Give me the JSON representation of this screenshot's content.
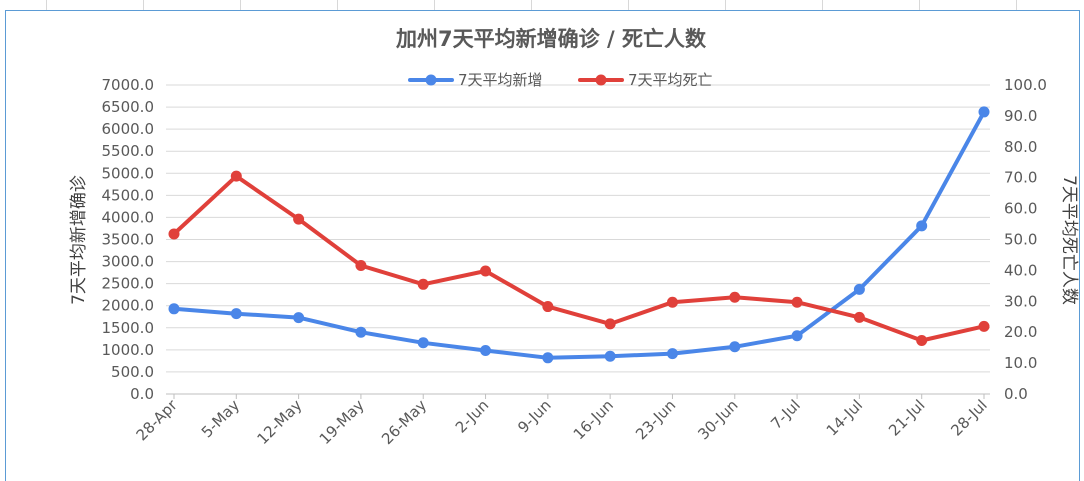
{
  "chart_data": {
    "type": "line",
    "title": "加州7天平均新增确诊 / 死亡人数",
    "categories": [
      "28-Apr",
      "5-May",
      "12-May",
      "19-May",
      "26-May",
      "2-Jun",
      "9-Jun",
      "16-Jun",
      "23-Jun",
      "30-Jun",
      "7-Jul",
      "14-Jul",
      "21-Jul",
      "28-Jul"
    ],
    "series": [
      {
        "name": "7天平均新增",
        "axis": "left",
        "color": "#4a86e8",
        "values": [
          1930,
          1820,
          1730,
          1400,
          1160,
          985,
          820,
          855,
          915,
          1070,
          1320,
          2370,
          3810,
          6390
        ]
      },
      {
        "name": "7天平均死亡",
        "axis": "right",
        "color": "#e0403a",
        "values": [
          51.8,
          70.5,
          56.6,
          41.6,
          35.5,
          39.8,
          28.3,
          22.7,
          29.7,
          31.3,
          29.7,
          24.8,
          17.3,
          21.9
        ]
      }
    ],
    "ylabel_left": "7天平均新增确诊",
    "ylabel_right": "7天平均死亡人数",
    "ylim_left": [
      0,
      7000
    ],
    "ylim_right": [
      0,
      100
    ],
    "yticks_left": [
      "0.0",
      "500.0",
      "1000.0",
      "1500.0",
      "2000.0",
      "2500.0",
      "3000.0",
      "3500.0",
      "4000.0",
      "4500.0",
      "5000.0",
      "5500.0",
      "6000.0",
      "6500.0",
      "7000.0"
    ],
    "yticks_right": [
      "0.0",
      "10.0",
      "20.0",
      "30.0",
      "40.0",
      "50.0",
      "60.0",
      "70.0",
      "80.0",
      "90.0",
      "100.0"
    ],
    "grid": true,
    "legend_position": "top"
  }
}
